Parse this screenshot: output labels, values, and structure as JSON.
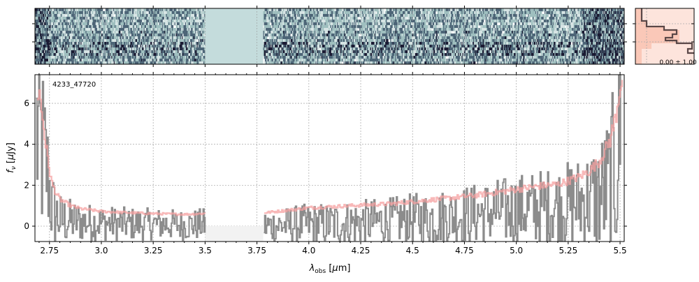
{
  "chart_data": {
    "type": "line",
    "object_id": "4233_47720",
    "xlabel": "λobs [μm]",
    "ylabel": "fν [μJy]",
    "xlim": [
      2.68,
      5.52
    ],
    "ylim": [
      -0.75,
      7.4
    ],
    "x_ticks": [
      "2.75",
      "3.0",
      "3.25",
      "3.5",
      "3.75",
      "4.0",
      "4.25",
      "4.5",
      "4.75",
      "5.0",
      "5.25",
      "5.5"
    ],
    "y_ticks": [
      "0",
      "2",
      "4",
      "6"
    ],
    "grid": true,
    "gap": [
      3.5,
      3.78
    ],
    "colors": {
      "flux": "#8c8c8c",
      "model": "#f6a0a0",
      "spectrum_2d_dark": "#1b1b33",
      "spectrum_2d_mid": "#9fbfbf",
      "gap_fill": "#c4dcdc",
      "profile_line": "#5a4747",
      "profile_fill": "#f9c4b4"
    },
    "series": [
      {
        "role": "flux",
        "x": [
          2.69,
          2.72,
          2.74,
          2.76,
          2.8,
          2.9,
          3.0,
          3.1,
          3.2,
          3.3,
          3.4,
          3.5,
          3.78,
          3.9,
          4.0,
          4.1,
          4.2,
          4.3,
          4.4,
          4.5,
          4.6,
          4.7,
          4.8,
          4.9,
          5.0,
          5.1,
          5.2,
          5.3,
          5.4,
          5.45,
          5.48,
          5.5
        ],
        "y": [
          4.5,
          3.5,
          2.5,
          0.8,
          0.3,
          0.2,
          0.15,
          0.12,
          0.1,
          0.1,
          0.05,
          0.1,
          0.0,
          0.05,
          0.1,
          0.1,
          0.15,
          0.2,
          0.25,
          0.35,
          0.4,
          0.5,
          0.6,
          0.7,
          0.8,
          0.9,
          1.0,
          1.2,
          1.5,
          2.0,
          3.0,
          5.0
        ]
      },
      {
        "role": "model",
        "x": [
          2.7,
          2.73,
          2.75,
          2.76,
          2.78,
          2.8,
          2.85,
          2.9,
          3.0,
          3.1,
          3.2,
          3.3,
          3.4,
          3.5,
          3.78,
          3.9,
          4.0,
          4.1,
          4.2,
          4.3,
          4.4,
          4.5,
          4.6,
          4.7,
          4.8,
          4.9,
          5.0,
          5.1,
          5.2,
          5.3,
          5.35,
          5.4,
          5.45,
          5.48,
          5.5
        ],
        "y": [
          6.5,
          4.0,
          2.6,
          2.1,
          1.6,
          1.3,
          1.0,
          0.85,
          0.72,
          0.67,
          0.63,
          0.6,
          0.58,
          0.62,
          0.65,
          0.78,
          0.9,
          0.95,
          1.0,
          1.05,
          1.1,
          1.2,
          1.3,
          1.4,
          1.5,
          1.65,
          1.8,
          1.95,
          2.05,
          2.4,
          2.7,
          3.2,
          4.2,
          5.5,
          7.0
        ]
      }
    ],
    "profile_label": "0.00 ± 1.00"
  }
}
